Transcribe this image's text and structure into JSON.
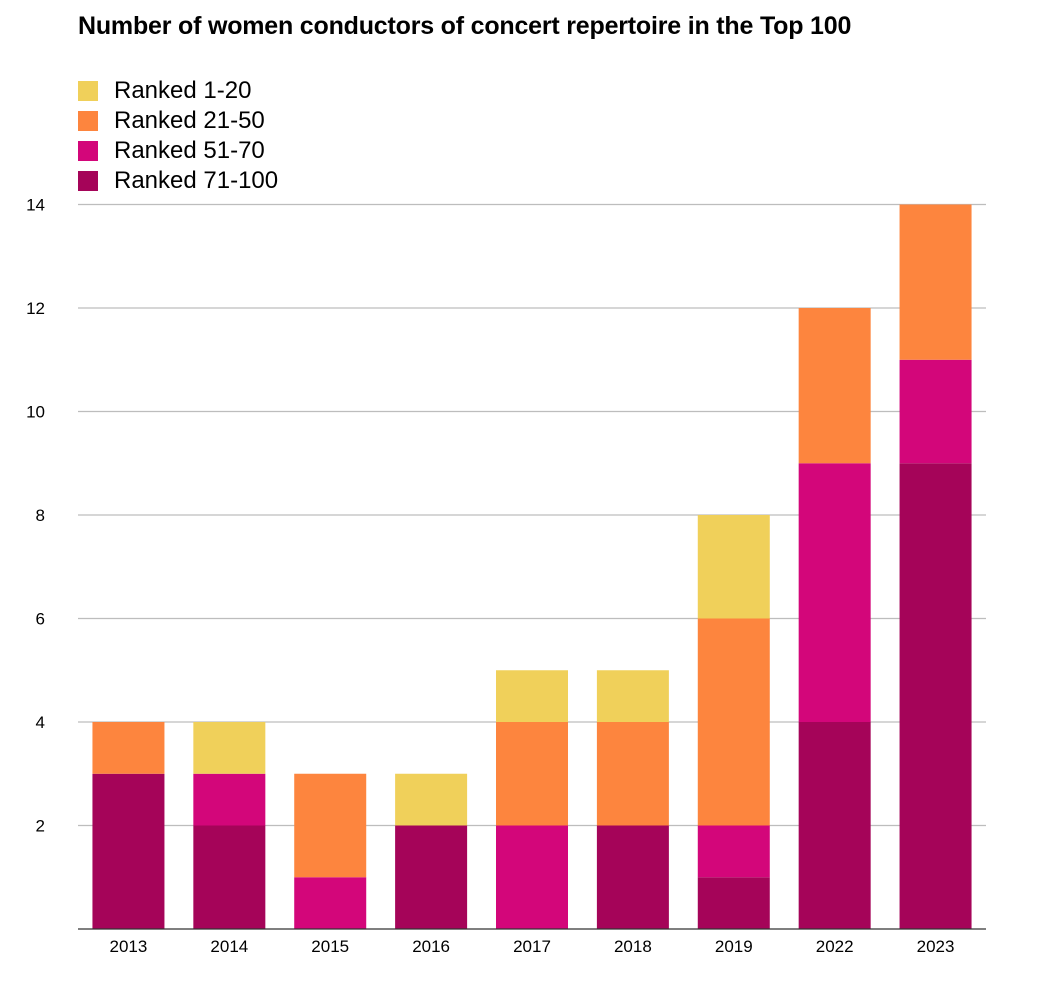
{
  "chart_data": {
    "type": "bar",
    "stacked": true,
    "title": "Number of women conductors of concert repertoire in the Top 100",
    "xlabel": "",
    "ylabel": "",
    "categories": [
      "2013",
      "2014",
      "2015",
      "2016",
      "2017",
      "2018",
      "2019",
      "2022",
      "2023"
    ],
    "ylim": [
      0,
      14
    ],
    "yticks": [
      2,
      4,
      6,
      8,
      10,
      12,
      14
    ],
    "grid": true,
    "legend_position": "top-left",
    "series": [
      {
        "name": "Ranked 71-100",
        "color": "#a50459",
        "values": [
          3,
          2,
          0,
          2,
          0,
          2,
          1,
          4,
          9
        ]
      },
      {
        "name": "Ranked 51-70",
        "color": "#d3067a",
        "values": [
          0,
          1,
          1,
          0,
          2,
          0,
          1,
          5,
          2
        ]
      },
      {
        "name": "Ranked 21-50",
        "color": "#fd853e",
        "values": [
          1,
          0,
          2,
          0,
          2,
          2,
          4,
          3,
          3
        ]
      },
      {
        "name": "Ranked 1-20",
        "color": "#f0d05a",
        "values": [
          0,
          1,
          0,
          1,
          1,
          1,
          2,
          0,
          0
        ]
      }
    ],
    "legend_order": [
      "Ranked 1-20",
      "Ranked 21-50",
      "Ranked 51-70",
      "Ranked 71-100"
    ]
  }
}
